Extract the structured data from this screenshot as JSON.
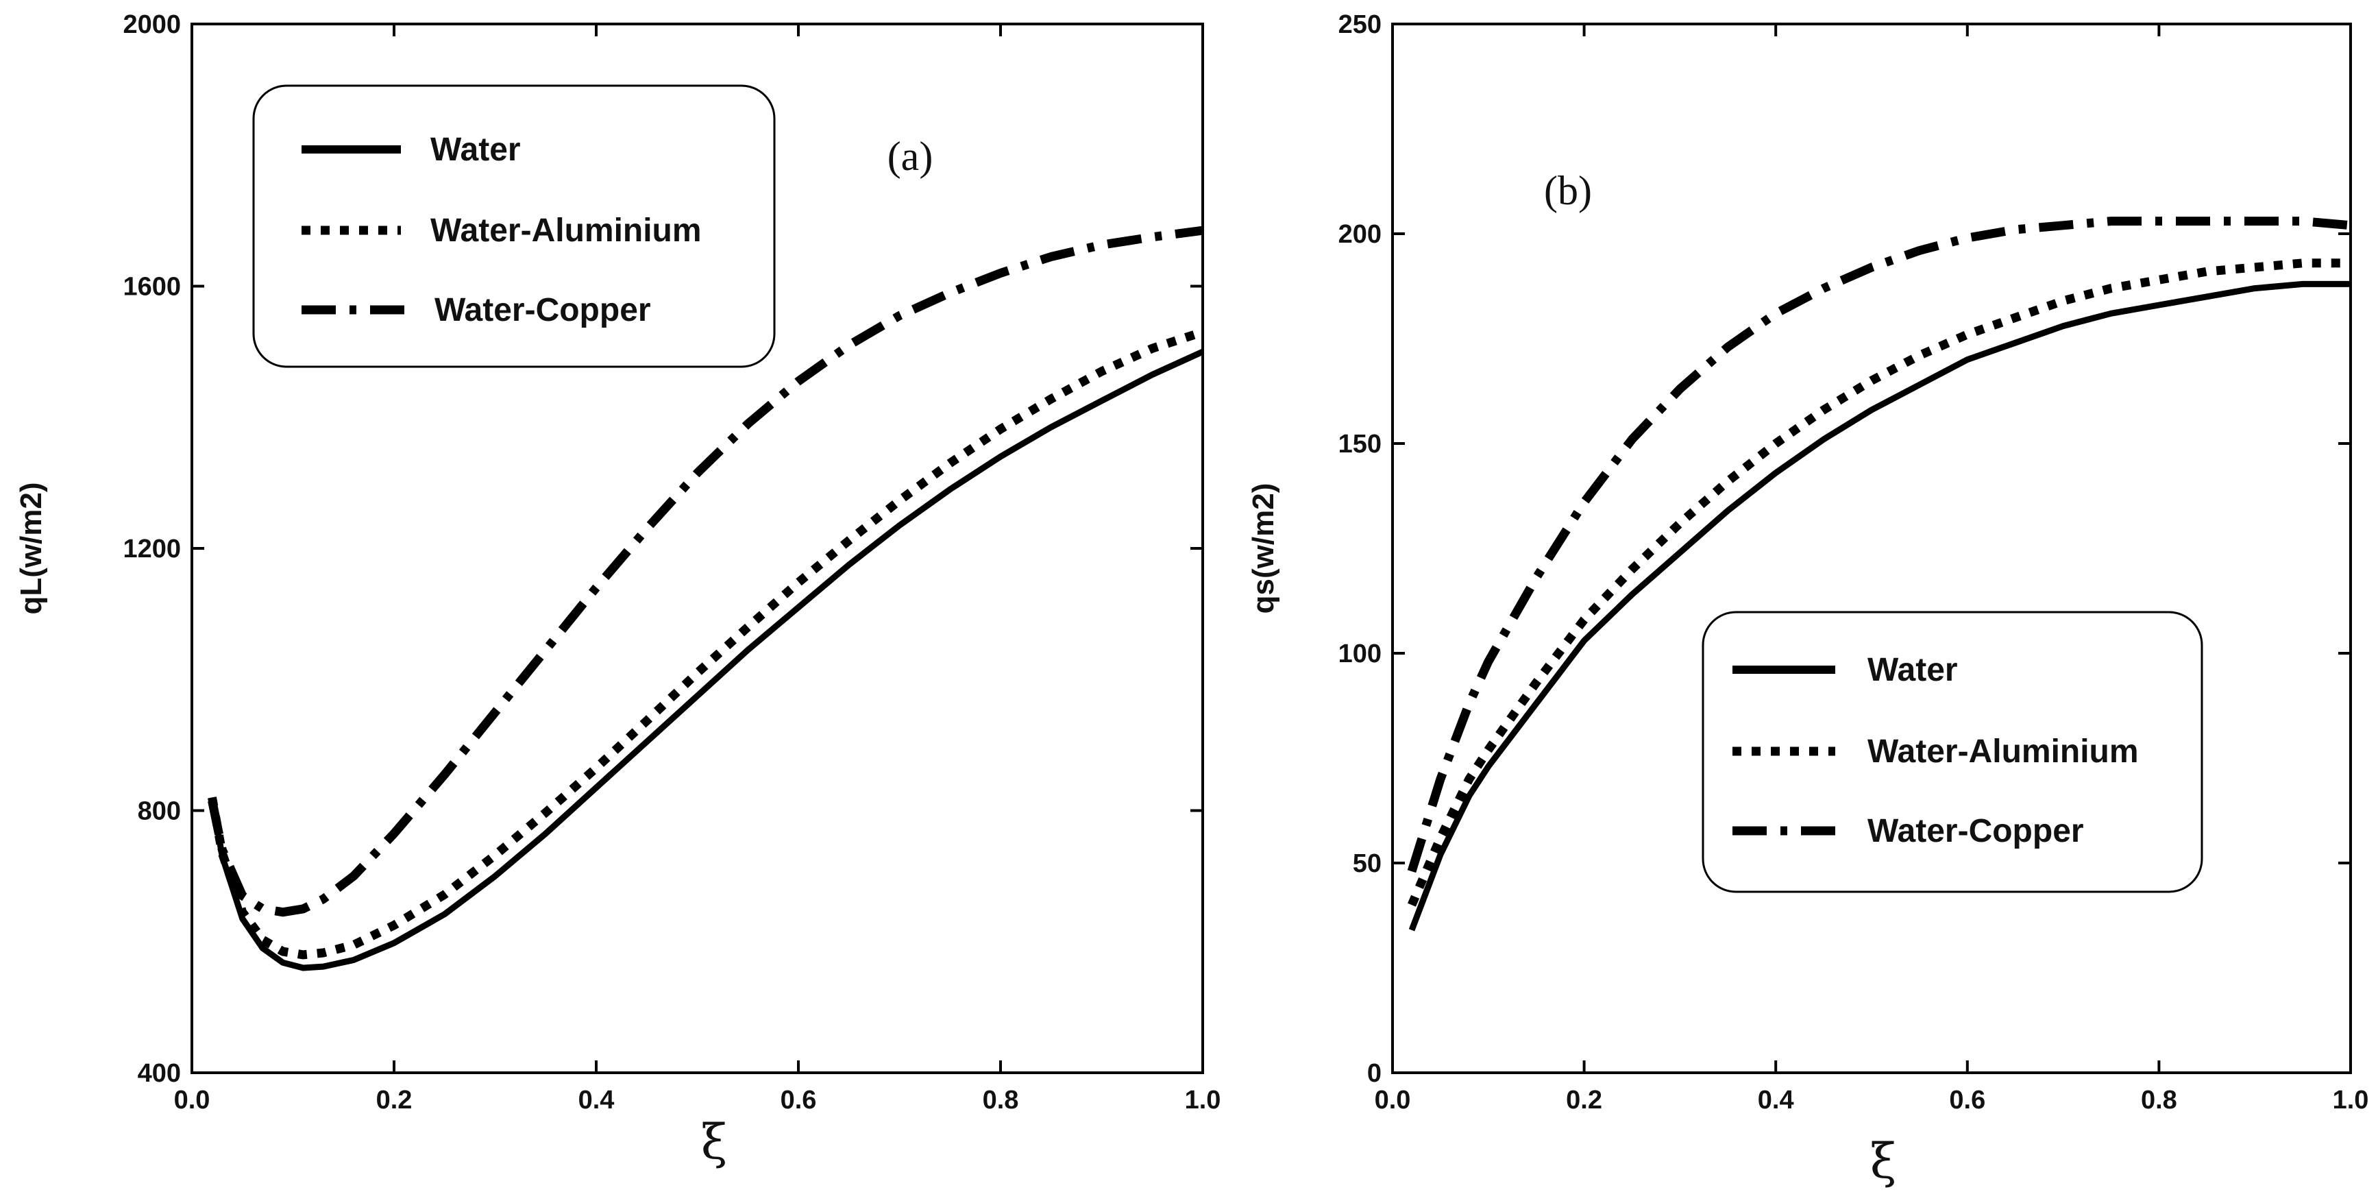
{
  "chart_data": [
    {
      "type": "line",
      "panel_label": "(a)",
      "xlabel": "ξ",
      "ylabel": "qL(w/m2)",
      "xlim": [
        0.0,
        1.0
      ],
      "ylim": [
        400,
        2000
      ],
      "x_ticks": [
        "0.0",
        "0.2",
        "0.4",
        "0.6",
        "0.8",
        "1.0"
      ],
      "y_ticks": [
        "400",
        "800",
        "1200",
        "1600",
        "2000"
      ],
      "legend_position": "top-left",
      "series": [
        {
          "name": "Water",
          "style": "solid",
          "x": [
            0.02,
            0.03,
            0.05,
            0.07,
            0.09,
            0.11,
            0.13,
            0.16,
            0.2,
            0.25,
            0.3,
            0.35,
            0.4,
            0.45,
            0.5,
            0.55,
            0.6,
            0.65,
            0.7,
            0.75,
            0.8,
            0.85,
            0.9,
            0.95,
            1.0
          ],
          "y": [
            820,
            730,
            635,
            590,
            568,
            560,
            562,
            572,
            598,
            642,
            700,
            765,
            835,
            905,
            975,
            1045,
            1110,
            1175,
            1235,
            1290,
            1340,
            1385,
            1425,
            1465,
            1500
          ]
        },
        {
          "name": "Water-Aluminium",
          "style": "dotted",
          "x": [
            0.02,
            0.03,
            0.05,
            0.07,
            0.09,
            0.11,
            0.13,
            0.16,
            0.2,
            0.25,
            0.3,
            0.35,
            0.4,
            0.45,
            0.5,
            0.55,
            0.6,
            0.65,
            0.7,
            0.75,
            0.8,
            0.85,
            0.9,
            0.95,
            1.0
          ],
          "y": [
            820,
            735,
            645,
            603,
            585,
            580,
            583,
            595,
            625,
            672,
            732,
            797,
            865,
            937,
            1010,
            1080,
            1148,
            1212,
            1273,
            1330,
            1382,
            1428,
            1470,
            1505,
            1530
          ]
        },
        {
          "name": "Water-Copper",
          "style": "dash-dot",
          "x": [
            0.02,
            0.03,
            0.05,
            0.07,
            0.09,
            0.11,
            0.13,
            0.16,
            0.2,
            0.25,
            0.3,
            0.35,
            0.4,
            0.45,
            0.5,
            0.55,
            0.6,
            0.65,
            0.7,
            0.75,
            0.8,
            0.85,
            0.9,
            0.95,
            1.0
          ],
          "y": [
            815,
            740,
            670,
            650,
            645,
            650,
            665,
            700,
            765,
            855,
            950,
            1045,
            1140,
            1230,
            1315,
            1390,
            1455,
            1510,
            1555,
            1590,
            1620,
            1645,
            1663,
            1675,
            1685
          ]
        }
      ]
    },
    {
      "type": "line",
      "panel_label": "(b)",
      "xlabel": "ξ",
      "ylabel": "qs(w/m2)",
      "xlim": [
        0.0,
        1.0
      ],
      "ylim": [
        0,
        250
      ],
      "x_ticks": [
        "0.0",
        "0.2",
        "0.4",
        "0.6",
        "0.8",
        "1.0"
      ],
      "y_ticks": [
        "0",
        "50",
        "100",
        "150",
        "200",
        "250"
      ],
      "legend_position": "center-right",
      "series": [
        {
          "name": "Water",
          "style": "solid",
          "x": [
            0.02,
            0.05,
            0.08,
            0.1,
            0.15,
            0.2,
            0.25,
            0.3,
            0.35,
            0.4,
            0.45,
            0.5,
            0.55,
            0.6,
            0.65,
            0.7,
            0.75,
            0.8,
            0.85,
            0.9,
            0.95,
            1.0
          ],
          "y": [
            34,
            52,
            66,
            73,
            88,
            103,
            114,
            124,
            134,
            143,
            151,
            158,
            164,
            170,
            174,
            178,
            181,
            183,
            185,
            187,
            188,
            188
          ]
        },
        {
          "name": "Water-Aluminium",
          "style": "dotted",
          "x": [
            0.02,
            0.05,
            0.08,
            0.1,
            0.15,
            0.2,
            0.25,
            0.3,
            0.35,
            0.4,
            0.45,
            0.5,
            0.55,
            0.6,
            0.65,
            0.7,
            0.75,
            0.8,
            0.85,
            0.9,
            0.95,
            1.0
          ],
          "y": [
            40,
            56,
            70,
            77,
            93,
            108,
            120,
            131,
            141,
            150,
            158,
            165,
            171,
            176,
            180,
            184,
            187,
            189,
            191,
            192,
            193,
            193
          ]
        },
        {
          "name": "Water-Copper",
          "style": "dash-dot",
          "x": [
            0.02,
            0.05,
            0.08,
            0.1,
            0.15,
            0.2,
            0.25,
            0.3,
            0.35,
            0.4,
            0.45,
            0.5,
            0.55,
            0.6,
            0.65,
            0.7,
            0.75,
            0.8,
            0.85,
            0.9,
            0.95,
            1.0
          ],
          "y": [
            48,
            70,
            88,
            98,
            118,
            136,
            151,
            163,
            173,
            181,
            187,
            192,
            196,
            199,
            201,
            202,
            203,
            203,
            203,
            203,
            203,
            202
          ]
        }
      ]
    }
  ]
}
